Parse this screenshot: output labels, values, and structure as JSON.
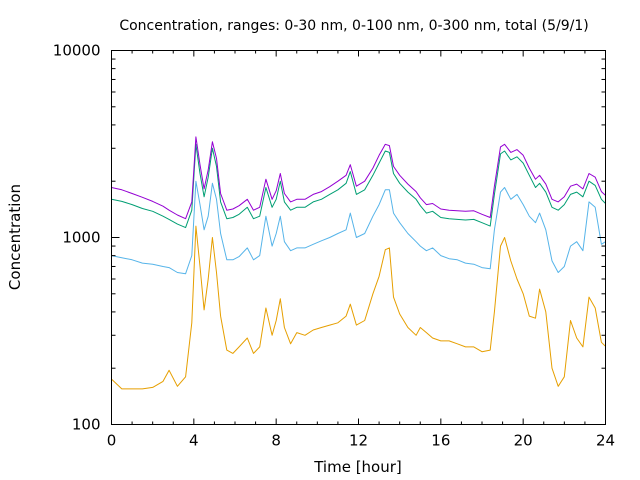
{
  "chart_data": {
    "type": "line",
    "title": "Concentration, ranges: 0-30 nm, 0-100 nm, 0-300 nm, total (5/9/1)",
    "xlabel": "Time [hour]",
    "ylabel": "Concentration",
    "yscale": "log",
    "xlim": [
      0,
      24
    ],
    "ylim": [
      100,
      10000
    ],
    "x_ticks": [
      0,
      4,
      8,
      12,
      16,
      20,
      24
    ],
    "y_ticks": [
      100,
      1000,
      10000
    ],
    "y_tick_labels": [
      "100",
      "1000",
      "10000"
    ],
    "grid": false,
    "legend": "none",
    "series": [
      {
        "color": "#E69F00",
        "x": [
          0,
          0.5,
          1,
          1.5,
          2,
          2.5,
          2.8,
          3.2,
          3.6,
          3.9,
          4.1,
          4.3,
          4.5,
          4.7,
          4.9,
          5.1,
          5.3,
          5.6,
          5.9,
          6.2,
          6.6,
          6.9,
          7.2,
          7.5,
          7.8,
          8.0,
          8.2,
          8.4,
          8.7,
          9.0,
          9.4,
          9.8,
          10.2,
          10.6,
          11.0,
          11.4,
          11.6,
          11.9,
          12.3,
          12.7,
          13.0,
          13.3,
          13.5,
          13.7,
          14.0,
          14.4,
          14.8,
          15.0,
          15.3,
          15.6,
          16.0,
          16.4,
          16.8,
          17.2,
          17.6,
          18.0,
          18.4,
          18.6,
          18.9,
          19.1,
          19.4,
          19.7,
          20.0,
          20.3,
          20.6,
          20.8,
          21.1,
          21.4,
          21.7,
          22.0,
          22.3,
          22.6,
          22.9,
          23.2,
          23.5,
          23.8,
          24.0
        ],
        "y": [
          175,
          155,
          155,
          155,
          158,
          170,
          195,
          160,
          180,
          350,
          1150,
          700,
          410,
          600,
          1000,
          650,
          380,
          250,
          240,
          260,
          290,
          240,
          260,
          420,
          300,
          360,
          470,
          330,
          270,
          310,
          300,
          320,
          330,
          340,
          350,
          380,
          440,
          340,
          360,
          500,
          620,
          860,
          880,
          480,
          390,
          330,
          300,
          330,
          310,
          290,
          280,
          280,
          270,
          260,
          260,
          245,
          250,
          400,
          900,
          1000,
          750,
          600,
          500,
          380,
          370,
          530,
          400,
          200,
          160,
          180,
          360,
          290,
          260,
          480,
          420,
          275,
          262
        ]
      },
      {
        "color": "#56B4E9",
        "x": [
          0,
          0.5,
          1,
          1.5,
          2,
          2.5,
          2.8,
          3.2,
          3.6,
          3.9,
          4.1,
          4.3,
          4.5,
          4.7,
          4.9,
          5.1,
          5.3,
          5.6,
          5.9,
          6.2,
          6.6,
          6.9,
          7.2,
          7.5,
          7.8,
          8.0,
          8.2,
          8.4,
          8.7,
          9.0,
          9.4,
          9.8,
          10.2,
          10.6,
          11.0,
          11.4,
          11.6,
          11.9,
          12.3,
          12.7,
          13.0,
          13.3,
          13.5,
          13.7,
          14.0,
          14.4,
          14.8,
          15.0,
          15.3,
          15.6,
          16.0,
          16.4,
          16.8,
          17.2,
          17.6,
          18.0,
          18.4,
          18.6,
          18.9,
          19.1,
          19.4,
          19.7,
          20.0,
          20.3,
          20.6,
          20.8,
          21.1,
          21.4,
          21.7,
          22.0,
          22.3,
          22.6,
          22.9,
          23.2,
          23.5,
          23.8,
          24.0
        ],
        "y": [
          800,
          780,
          760,
          730,
          720,
          700,
          690,
          650,
          640,
          800,
          2000,
          1500,
          1100,
          1300,
          1950,
          1600,
          1050,
          760,
          760,
          790,
          880,
          760,
          800,
          1300,
          900,
          1050,
          1300,
          950,
          850,
          880,
          880,
          920,
          960,
          1000,
          1050,
          1100,
          1350,
          1000,
          1050,
          1300,
          1500,
          1800,
          1800,
          1350,
          1200,
          1050,
          950,
          900,
          850,
          880,
          800,
          770,
          760,
          730,
          720,
          690,
          680,
          1100,
          1750,
          1850,
          1600,
          1700,
          1500,
          1300,
          1200,
          1350,
          1100,
          750,
          650,
          700,
          900,
          950,
          850,
          1550,
          1450,
          920,
          950
        ]
      },
      {
        "color": "#009E73",
        "x": [
          0,
          0.5,
          1,
          1.5,
          2,
          2.5,
          2.8,
          3.2,
          3.6,
          3.9,
          4.1,
          4.3,
          4.5,
          4.7,
          4.9,
          5.1,
          5.3,
          5.6,
          5.9,
          6.2,
          6.6,
          6.9,
          7.2,
          7.5,
          7.8,
          8.0,
          8.2,
          8.4,
          8.7,
          9.0,
          9.4,
          9.8,
          10.2,
          10.6,
          11.0,
          11.4,
          11.6,
          11.9,
          12.3,
          12.7,
          13.0,
          13.3,
          13.5,
          13.7,
          14.0,
          14.4,
          14.8,
          15.0,
          15.3,
          15.6,
          16.0,
          16.4,
          16.8,
          17.2,
          17.6,
          18.0,
          18.4,
          18.6,
          18.9,
          19.1,
          19.4,
          19.7,
          20.0,
          20.3,
          20.6,
          20.8,
          21.1,
          21.4,
          21.7,
          22.0,
          22.3,
          22.6,
          22.9,
          23.2,
          23.5,
          23.8,
          24.0
        ],
        "y": [
          1600,
          1560,
          1500,
          1430,
          1380,
          1300,
          1250,
          1180,
          1130,
          1400,
          3150,
          2200,
          1650,
          2100,
          3000,
          2400,
          1550,
          1260,
          1280,
          1330,
          1450,
          1260,
          1300,
          1850,
          1450,
          1600,
          2000,
          1550,
          1400,
          1450,
          1450,
          1550,
          1600,
          1700,
          1800,
          1950,
          2250,
          1700,
          1800,
          2150,
          2500,
          2900,
          2850,
          2200,
          1950,
          1750,
          1600,
          1480,
          1350,
          1380,
          1280,
          1260,
          1250,
          1240,
          1250,
          1200,
          1150,
          1700,
          2800,
          2900,
          2600,
          2700,
          2500,
          2150,
          1850,
          1950,
          1750,
          1450,
          1400,
          1500,
          1700,
          1750,
          1650,
          2000,
          1900,
          1600,
          1520
        ]
      },
      {
        "color": "#9400D3",
        "x": [
          0,
          0.5,
          1,
          1.5,
          2,
          2.5,
          2.8,
          3.2,
          3.6,
          3.9,
          4.1,
          4.3,
          4.5,
          4.7,
          4.9,
          5.1,
          5.3,
          5.6,
          5.9,
          6.2,
          6.6,
          6.9,
          7.2,
          7.5,
          7.8,
          8.0,
          8.2,
          8.4,
          8.7,
          9.0,
          9.4,
          9.8,
          10.2,
          10.6,
          11.0,
          11.4,
          11.6,
          11.9,
          12.3,
          12.7,
          13.0,
          13.3,
          13.5,
          13.7,
          14.0,
          14.4,
          14.8,
          15.0,
          15.3,
          15.6,
          16.0,
          16.4,
          16.8,
          17.2,
          17.6,
          18.0,
          18.4,
          18.6,
          18.9,
          19.1,
          19.4,
          19.7,
          20.0,
          20.3,
          20.6,
          20.8,
          21.1,
          21.4,
          21.7,
          22.0,
          22.3,
          22.6,
          22.9,
          23.2,
          23.5,
          23.8,
          24.0
        ],
        "y": [
          1850,
          1800,
          1720,
          1640,
          1560,
          1470,
          1400,
          1320,
          1260,
          1550,
          3450,
          2450,
          1820,
          2300,
          3250,
          2650,
          1720,
          1400,
          1420,
          1480,
          1600,
          1400,
          1450,
          2050,
          1600,
          1780,
          2200,
          1720,
          1550,
          1600,
          1600,
          1700,
          1760,
          1870,
          2000,
          2150,
          2450,
          1880,
          2000,
          2350,
          2750,
          3150,
          3100,
          2400,
          2150,
          1930,
          1760,
          1630,
          1500,
          1520,
          1420,
          1400,
          1390,
          1380,
          1390,
          1330,
          1280,
          1880,
          3050,
          3150,
          2850,
          2950,
          2750,
          2350,
          2050,
          2150,
          1930,
          1600,
          1550,
          1650,
          1880,
          1930,
          1820,
          2200,
          2100,
          1760,
          1680
        ]
      }
    ]
  }
}
